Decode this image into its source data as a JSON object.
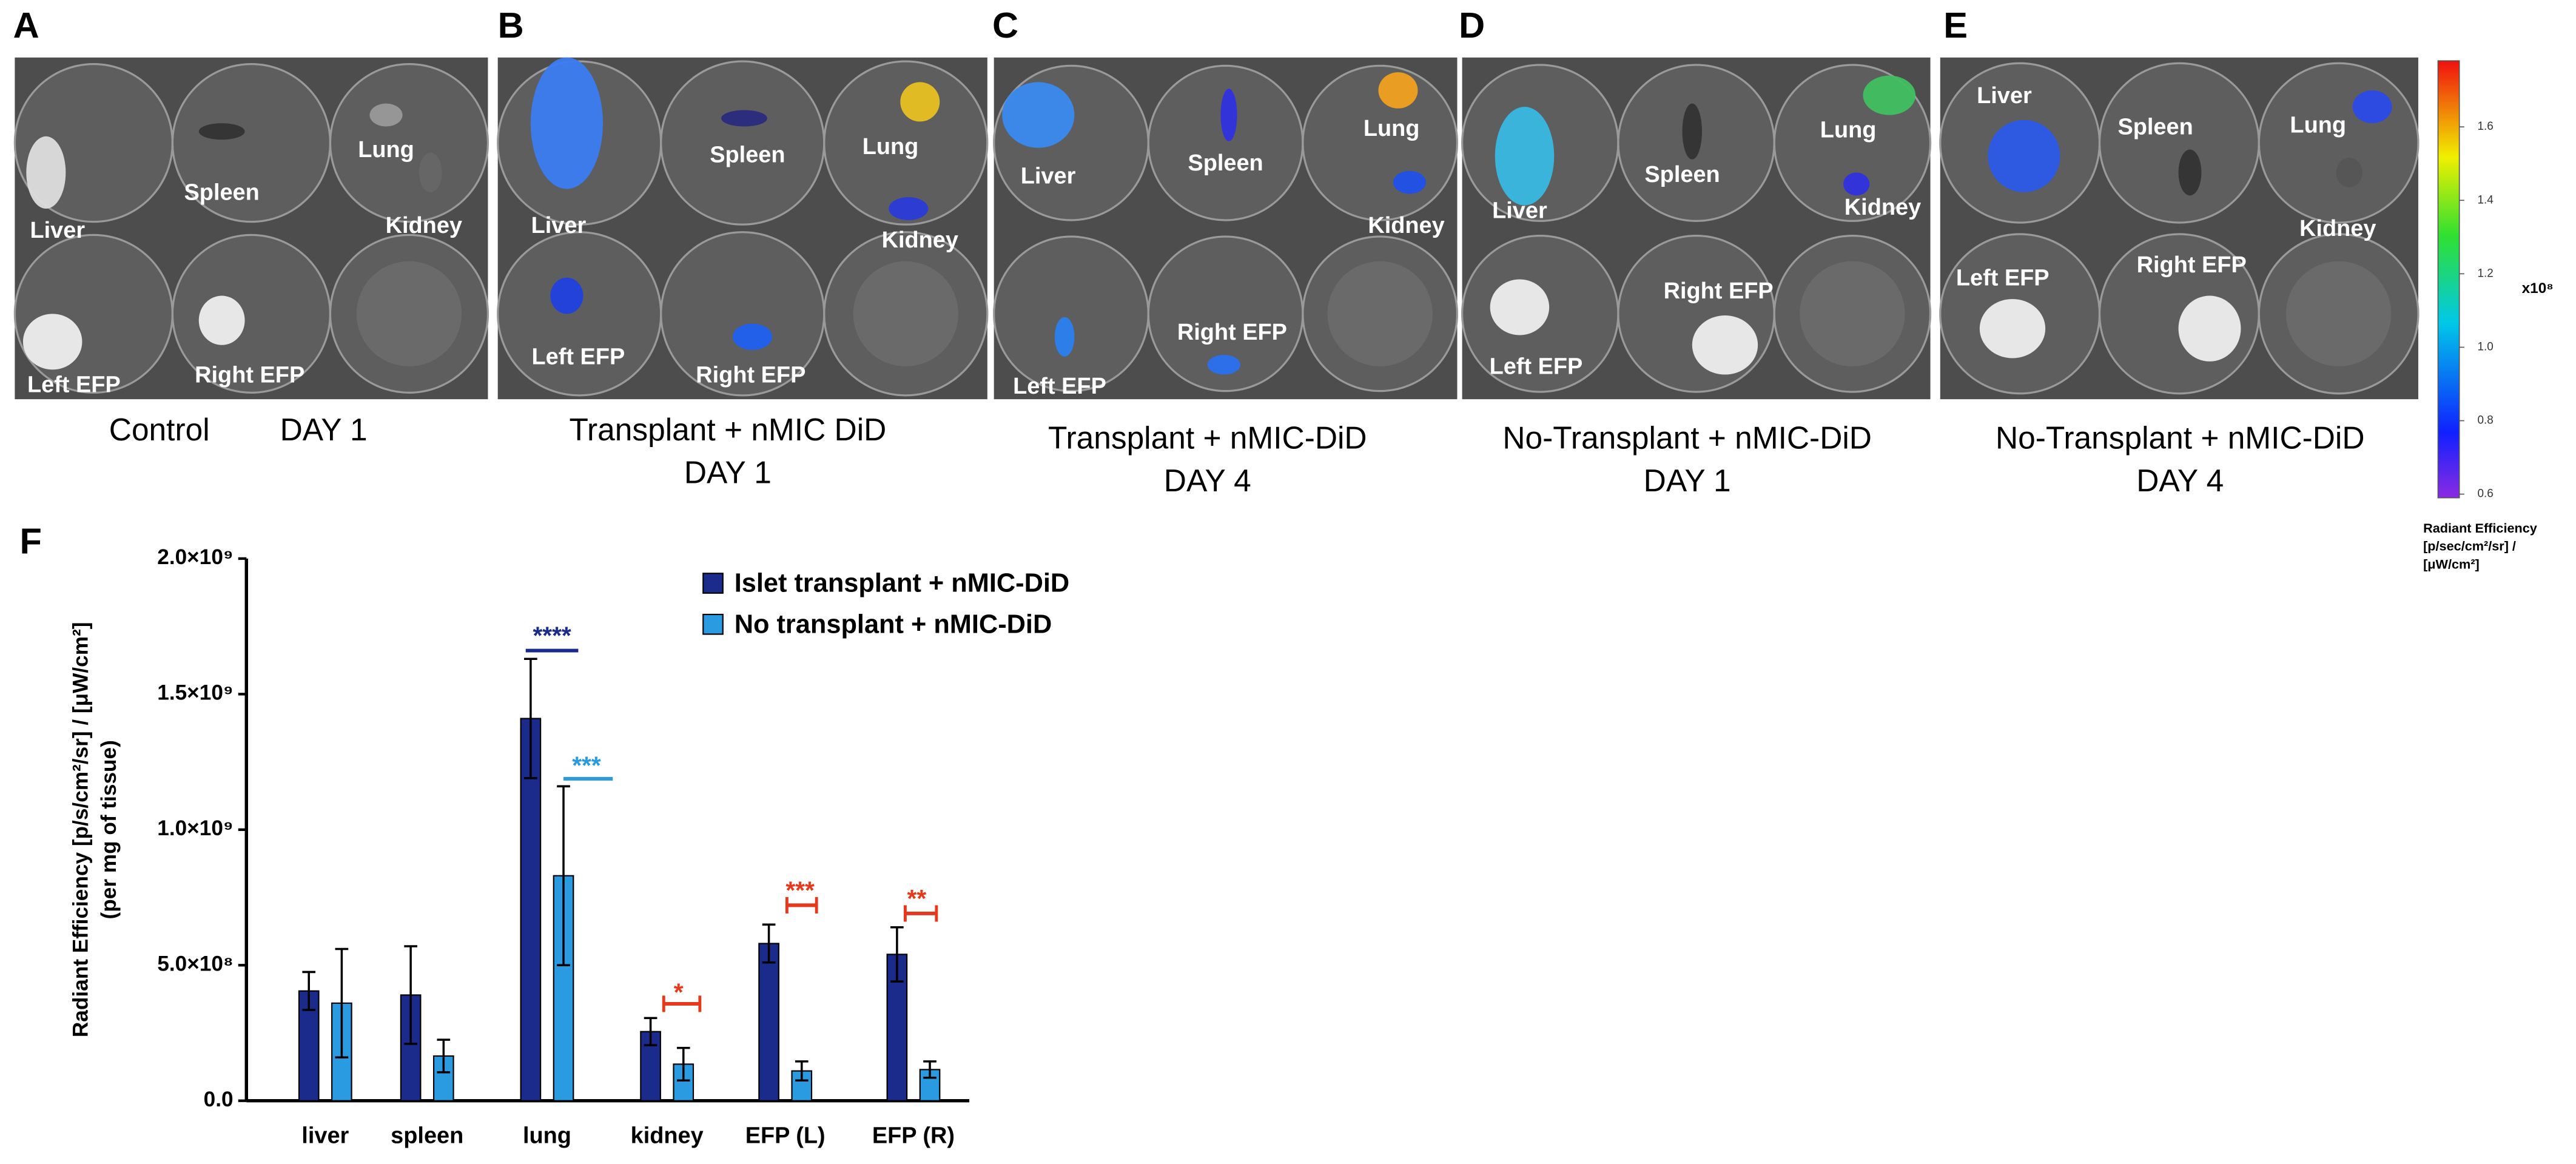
{
  "panels": [
    {
      "letter": "A",
      "organs": [
        "Liver",
        "Spleen",
        "Lung",
        "Kidney",
        "Left EFP",
        "Right EFP"
      ],
      "caption": [
        "Control",
        "DAY 1"
      ]
    },
    {
      "letter": "B",
      "organs": [
        "Liver",
        "Spleen",
        "Lung",
        "Kidney",
        "Left EFP",
        "Right EFP"
      ],
      "caption": [
        "Transplant + nMIC DiD",
        "DAY 1"
      ]
    },
    {
      "letter": "C",
      "organs": [
        "Liver",
        "Spleen",
        "Lung",
        "Kidney",
        "Left EFP",
        "Right EFP"
      ],
      "caption": [
        "Transplant + nMIC-DiD",
        "DAY 4"
      ]
    },
    {
      "letter": "D",
      "organs": [
        "Liver",
        "Spleen",
        "Lung",
        "Kidney",
        "Left EFP",
        "Right EFP"
      ],
      "caption": [
        "No-Transplant + nMIC-DiD",
        "DAY 1"
      ]
    },
    {
      "letter": "E",
      "organs": [
        "Liver",
        "Spleen",
        "Lung",
        "Kidney",
        "Left EFP",
        "Right EFP"
      ],
      "caption": [
        "No-Transplant + nMIC-DiD",
        "DAY 4"
      ]
    }
  ],
  "colorbar": {
    "lim": [
      0.59,
      1.78
    ],
    "ticks": [
      0.6,
      0.8,
      {
        "value": 1,
        "label": "1.0"
      },
      1.2,
      1.4,
      1.6
    ],
    "multiplier": "x10⁸",
    "label": [
      "Radiant Efficiency",
      "[p/sec/cm²/sr] /",
      "[μW/cm²]"
    ]
  },
  "chart_data": {
    "type": "bar",
    "panel_label": "F",
    "ylabel": [
      "Radiant Efficiency [p/s/cm²/sr] / [μW/cm²]",
      "(per mg of tissue)"
    ],
    "categories": [
      "liver",
      "spleen",
      "lung",
      "kidney",
      "EFP (L)",
      "EFP (R)"
    ],
    "series": [
      {
        "name": "Islet transplant + nMIC-DiD",
        "color": "#1b2b8c",
        "values": [
          405000000,
          390000000,
          1410000000,
          255000000,
          580000000,
          540000000
        ],
        "errors": [
          70000000,
          180000000,
          220000000,
          50000000,
          70000000,
          100000000
        ]
      },
      {
        "name": "No transplant + nMIC-DiD",
        "color": "#2a9be0",
        "values": [
          360000000,
          165000000,
          830000000,
          135000000,
          110000000,
          115000000
        ],
        "errors": [
          200000000,
          60000000,
          330000000,
          60000000,
          35000000,
          30000000
        ]
      }
    ],
    "ylim": [
      0,
      2000000000
    ],
    "yticks": [
      {
        "value": 0,
        "label": "0.0"
      },
      {
        "value": 500000000,
        "label": "5.0×10⁸"
      },
      {
        "value": 1000000000,
        "label": "1.0×10⁹"
      },
      {
        "value": 1500000000,
        "label": "1.5×10⁹"
      },
      {
        "value": 2000000000,
        "label": "2.0×10⁹"
      }
    ],
    "annotations": [
      {
        "text": "****",
        "color": "#1b2b8c"
      },
      {
        "text": "***",
        "color": "#2a9be0"
      },
      {
        "text": "*",
        "color": "#e8381c"
      },
      {
        "text": "***",
        "color": "#e8381c"
      },
      {
        "text": "**",
        "color": "#e8381c"
      }
    ]
  }
}
